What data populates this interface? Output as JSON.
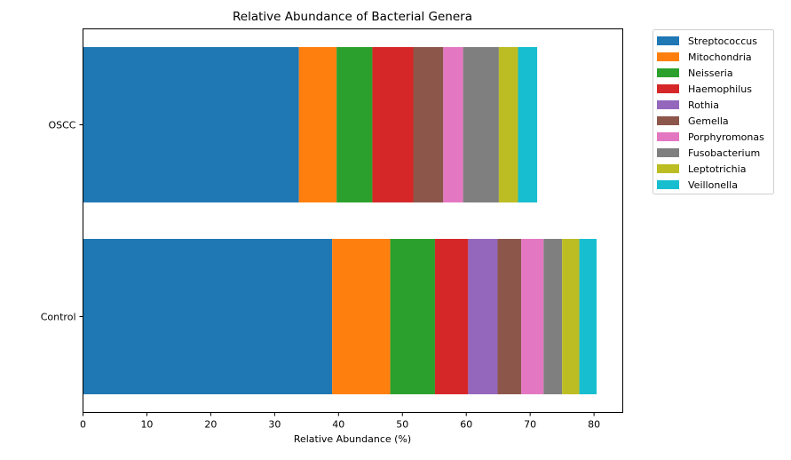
{
  "chart_data": {
    "type": "bar",
    "orientation": "horizontal",
    "stacked": true,
    "title": "Relative Abundance of Bacterial Genera",
    "xlabel": "Relative Abundance (%)",
    "ylabel": "",
    "xlim": [
      0,
      84.5
    ],
    "xticks": [
      "0",
      "10",
      "20",
      "30",
      "40",
      "50",
      "60",
      "70",
      "80"
    ],
    "categories": [
      "OSCC",
      "Control"
    ],
    "legend_position": "outside-top-right",
    "grid": false,
    "series": [
      {
        "name": "Streptococcus",
        "color": "#1f77b4",
        "values": [
          33.8,
          39.0
        ]
      },
      {
        "name": "Mitochondria",
        "color": "#ff7f0e",
        "values": [
          5.9,
          9.1
        ]
      },
      {
        "name": "Neisseria",
        "color": "#2ca02c",
        "values": [
          5.6,
          7.0
        ]
      },
      {
        "name": "Haemophilus",
        "color": "#d62728",
        "values": [
          6.4,
          5.2
        ]
      },
      {
        "name": "Rothia",
        "color": "#9467bd",
        "values": [
          0.0,
          4.6
        ]
      },
      {
        "name": "Gemella",
        "color": "#8c564b",
        "values": [
          4.7,
          3.7
        ]
      },
      {
        "name": "Porphyromonas",
        "color": "#e377c2",
        "values": [
          3.1,
          3.5
        ]
      },
      {
        "name": "Fusobacterium",
        "color": "#7f7f7f",
        "values": [
          5.6,
          2.9
        ]
      },
      {
        "name": "Leptotrichia",
        "color": "#bcbd22",
        "values": [
          3.0,
          2.7
        ]
      },
      {
        "name": "Veillonella",
        "color": "#17becf",
        "values": [
          3.0,
          2.7
        ]
      }
    ]
  }
}
